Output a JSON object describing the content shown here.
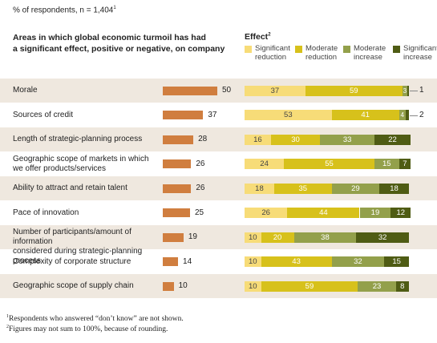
{
  "header": {
    "respondents": "% of respondents, n = 1,404",
    "respondents_note": "1",
    "heading_line1": "Areas in which global economic turmoil has had",
    "heading_line2": "a significant effect, positive or negative, on company",
    "effect_title": "Effect",
    "effect_note": "2"
  },
  "legend": [
    {
      "line1": "Significant",
      "line2": "reduction",
      "color": "#f7dc78"
    },
    {
      "line1": "Moderate",
      "line2": "reduction",
      "color": "#d7c11b"
    },
    {
      "line1": "Moderate",
      "line2": "increase",
      "color": "#93a04b"
    },
    {
      "line1": "Significant",
      "line2": "increase",
      "color": "#4f5c14"
    }
  ],
  "chart_data": {
    "type": "bar",
    "categories": [
      [
        "Morale"
      ],
      [
        "Sources of credit"
      ],
      [
        "Length of strategic-planning process"
      ],
      [
        "Geographic scope of markets in which",
        "we offer products/services"
      ],
      [
        "Ability to attract and retain talent"
      ],
      [
        "Pace of innovation"
      ],
      [
        "Number of participants/amount of information",
        "considered during strategic-planning process"
      ],
      [
        "Complexity of corporate structure"
      ],
      [
        "Geographic scope of supply chain"
      ]
    ],
    "values": [
      50,
      37,
      28,
      26,
      26,
      25,
      19,
      14,
      10
    ],
    "series": [
      {
        "name": "Significant reduction",
        "values": [
          37,
          53,
          16,
          24,
          18,
          26,
          10,
          10,
          10
        ]
      },
      {
        "name": "Moderate reduction",
        "values": [
          59,
          41,
          30,
          55,
          35,
          44,
          20,
          43,
          59
        ]
      },
      {
        "name": "Moderate increase",
        "values": [
          3,
          4,
          33,
          15,
          29,
          19,
          38,
          32,
          23
        ]
      },
      {
        "name": "Significant increase",
        "values": [
          1,
          2,
          22,
          7,
          18,
          12,
          32,
          15,
          8
        ]
      }
    ]
  },
  "footnotes": {
    "note1_mark": "1",
    "note1": "Respondents who answered “don’t know” are not shown.",
    "note2_mark": "2",
    "note2": "Figures may not sum to 100%, because of rounding."
  }
}
